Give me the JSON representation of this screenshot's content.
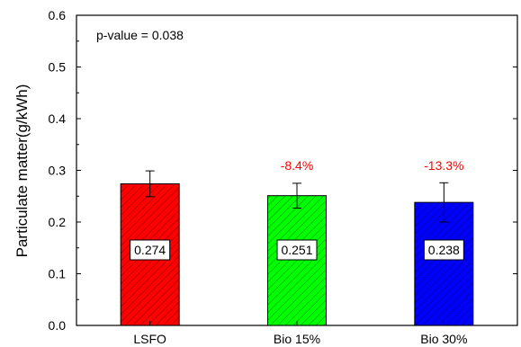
{
  "chart_data": {
    "type": "bar",
    "categories": [
      "LSFO",
      "Bio 15%",
      "Bio 30%"
    ],
    "values": [
      0.274,
      0.251,
      0.238
    ],
    "error": [
      0.025,
      0.024,
      0.038
    ],
    "value_labels": [
      "0.274",
      "0.251",
      "0.238"
    ],
    "change_labels": [
      "",
      "-8.4%",
      "-13.3%"
    ],
    "colors": [
      "#ff0000",
      "#00ff00",
      "#0000ff"
    ],
    "change_label_color": "#ff0000",
    "title": "",
    "xlabel": "",
    "ylabel": "Particulate matter(g/kWh)",
    "ylim": [
      0.0,
      0.6
    ],
    "yticks": [
      "0.0",
      "0.1",
      "0.2",
      "0.3",
      "0.4",
      "0.5",
      "0.6"
    ],
    "annotation": "p-value = 0.038",
    "grid": false,
    "hatch": "diagonal"
  }
}
